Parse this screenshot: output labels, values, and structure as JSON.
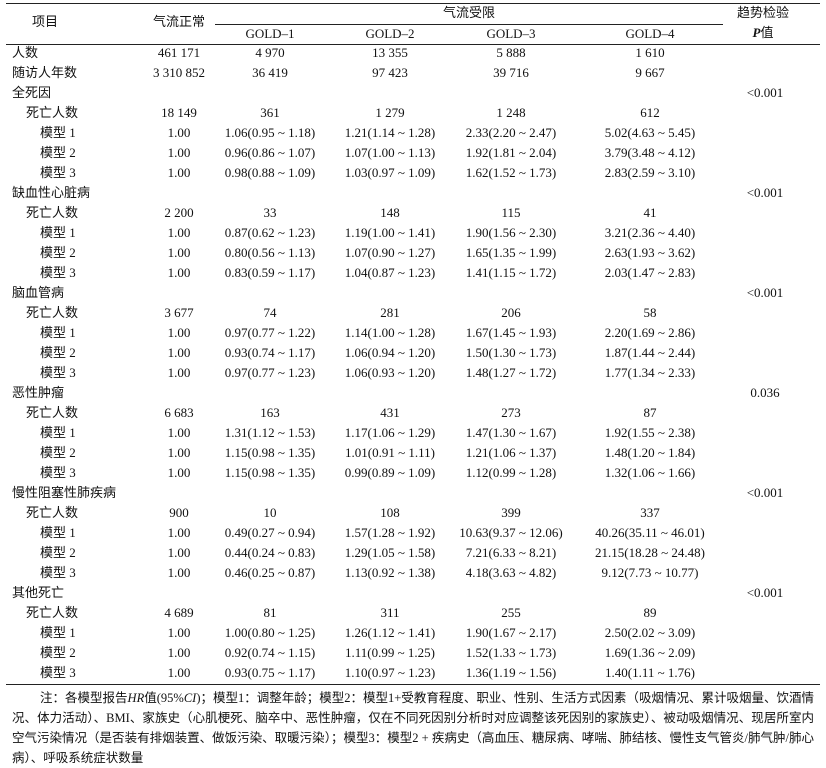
{
  "table": {
    "header": {
      "item": "项目",
      "normal": "气流正常",
      "group": "气流受限",
      "subcols": [
        "GOLD–1",
        "GOLD–2",
        "GOLD–3",
        "GOLD–4"
      ],
      "trend": "趋势检验",
      "trend_p": "P",
      "trend_suffix": "值"
    },
    "top_rows": [
      {
        "label": "人数",
        "values": [
          "461 171",
          "4 970",
          "13 355",
          "5 888",
          "1 610"
        ]
      },
      {
        "label": "随访人年数",
        "values": [
          "3 310 852",
          "36 419",
          "97 423",
          "39 716",
          "9 667"
        ]
      }
    ],
    "sections": [
      {
        "title": "全死因",
        "p": "<0.001",
        "rows": [
          {
            "label": "死亡人数",
            "values": [
              "18 149",
              "361",
              "1 279",
              "1 248",
              "612"
            ]
          },
          {
            "label": "模型 1",
            "values": [
              "1.00",
              "1.06(0.95 ~ 1.18)",
              "1.21(1.14 ~ 1.28)",
              "2.33(2.20 ~ 2.47)",
              "5.02(4.63 ~ 5.45)"
            ]
          },
          {
            "label": "模型 2",
            "values": [
              "1.00",
              "0.96(0.86 ~ 1.07)",
              "1.07(1.00 ~ 1.13)",
              "1.92(1.81 ~ 2.04)",
              "3.79(3.48 ~ 4.12)"
            ]
          },
          {
            "label": "模型 3",
            "values": [
              "1.00",
              "0.98(0.88 ~ 1.09)",
              "1.03(0.97 ~ 1.09)",
              "1.62(1.52 ~ 1.73)",
              "2.83(2.59 ~ 3.10)"
            ]
          }
        ]
      },
      {
        "title": "缺血性心脏病",
        "p": "<0.001",
        "rows": [
          {
            "label": "死亡人数",
            "values": [
              "2 200",
              "33",
              "148",
              "115",
              "41"
            ]
          },
          {
            "label": "模型 1",
            "values": [
              "1.00",
              "0.87(0.62 ~ 1.23)",
              "1.19(1.00 ~ 1.41)",
              "1.90(1.56 ~ 2.30)",
              "3.21(2.36 ~ 4.40)"
            ]
          },
          {
            "label": "模型 2",
            "values": [
              "1.00",
              "0.80(0.56 ~ 1.13)",
              "1.07(0.90 ~ 1.27)",
              "1.65(1.35 ~ 1.99)",
              "2.63(1.93 ~ 3.62)"
            ]
          },
          {
            "label": "模型 3",
            "values": [
              "1.00",
              "0.83(0.59 ~ 1.17)",
              "1.04(0.87 ~ 1.23)",
              "1.41(1.15 ~ 1.72)",
              "2.03(1.47 ~ 2.83)"
            ]
          }
        ]
      },
      {
        "title": "脑血管病",
        "p": "<0.001",
        "rows": [
          {
            "label": "死亡人数",
            "values": [
              "3 677",
              "74",
              "281",
              "206",
              "58"
            ]
          },
          {
            "label": "模型 1",
            "values": [
              "1.00",
              "0.97(0.77 ~ 1.22)",
              "1.14(1.00 ~ 1.28)",
              "1.67(1.45 ~ 1.93)",
              "2.20(1.69 ~ 2.86)"
            ]
          },
          {
            "label": "模型 2",
            "values": [
              "1.00",
              "0.93(0.74 ~ 1.17)",
              "1.06(0.94 ~ 1.20)",
              "1.50(1.30 ~ 1.73)",
              "1.87(1.44 ~ 2.44)"
            ]
          },
          {
            "label": "模型 3",
            "values": [
              "1.00",
              "0.97(0.77 ~ 1.23)",
              "1.06(0.93 ~ 1.20)",
              "1.48(1.27 ~ 1.72)",
              "1.77(1.34 ~ 2.33)"
            ]
          }
        ]
      },
      {
        "title": "恶性肿瘤",
        "p": "0.036",
        "rows": [
          {
            "label": "死亡人数",
            "values": [
              "6 683",
              "163",
              "431",
              "273",
              "87"
            ]
          },
          {
            "label": "模型 1",
            "values": [
              "1.00",
              "1.31(1.12 ~ 1.53)",
              "1.17(1.06 ~ 1.29)",
              "1.47(1.30 ~ 1.67)",
              "1.92(1.55 ~ 2.38)"
            ]
          },
          {
            "label": "模型 2",
            "values": [
              "1.00",
              "1.15(0.98 ~ 1.35)",
              "1.01(0.91 ~ 1.11)",
              "1.21(1.06 ~ 1.37)",
              "1.48(1.20 ~ 1.84)"
            ]
          },
          {
            "label": "模型 3",
            "values": [
              "1.00",
              "1.15(0.98 ~ 1.35)",
              "0.99(0.89 ~ 1.09)",
              "1.12(0.99 ~ 1.28)",
              "1.32(1.06 ~ 1.66)"
            ]
          }
        ]
      },
      {
        "title": "慢性阻塞性肺疾病",
        "p": "<0.001",
        "rows": [
          {
            "label": "死亡人数",
            "values": [
              "900",
              "10",
              "108",
              "399",
              "337"
            ]
          },
          {
            "label": "模型 1",
            "values": [
              "1.00",
              "0.49(0.27 ~ 0.94)",
              "1.57(1.28 ~ 1.92)",
              "10.63(9.37 ~ 12.06)",
              "40.26(35.11 ~ 46.01)"
            ]
          },
          {
            "label": "模型 2",
            "values": [
              "1.00",
              "0.44(0.24 ~ 0.83)",
              "1.29(1.05 ~ 1.58)",
              "7.21(6.33 ~ 8.21)",
              "21.15(18.28 ~ 24.48)"
            ]
          },
          {
            "label": "模型 3",
            "values": [
              "1.00",
              "0.46(0.25 ~ 0.87)",
              "1.13(0.92 ~ 1.38)",
              "4.18(3.63 ~ 4.82)",
              "9.12(7.73 ~ 10.77)"
            ]
          }
        ]
      },
      {
        "title": "其他死亡",
        "p": "<0.001",
        "rows": [
          {
            "label": "死亡人数",
            "values": [
              "4 689",
              "81",
              "311",
              "255",
              "89"
            ]
          },
          {
            "label": "模型 1",
            "values": [
              "1.00",
              "1.00(0.80 ~ 1.25)",
              "1.26(1.12 ~ 1.41)",
              "1.90(1.67 ~ 2.17)",
              "2.50(2.02 ~ 3.09)"
            ]
          },
          {
            "label": "模型 2",
            "values": [
              "1.00",
              "0.92(0.74 ~ 1.15)",
              "1.11(0.99 ~ 1.25)",
              "1.52(1.33 ~ 1.73)",
              "1.69(1.36 ~ 2.09)"
            ]
          },
          {
            "label": "模型 3",
            "values": [
              "1.00",
              "0.93(0.75 ~ 1.17)",
              "1.10(0.97 ~ 1.23)",
              "1.36(1.19 ~ 1.56)",
              "1.40(1.11 ~ 1.76)"
            ]
          }
        ]
      }
    ]
  },
  "note": [
    "注：各模型报告",
    "HR",
    "值(95%",
    "CI",
    ")；模型1：调整年龄；模型2：模型1+受教育程度、职业、性别、生活方式因素（吸烟情况、累计吸烟量、饮酒情况、体力活动）、BMI、家族史（心肌梗死、脑卒中、恶性肿瘤，仅在不同死因别分析时对应调整该死因别的家族史）、被动吸烟情况、现居所室内空气污染情况（是否装有排烟装置、做饭污染、取暖污染）；模型3：模型2 + 疾病史（高血压、糖尿病、哮喘、肺结核、慢性支气管炎/肺气肿/肺心病）、呼吸系统症状数量"
  ]
}
